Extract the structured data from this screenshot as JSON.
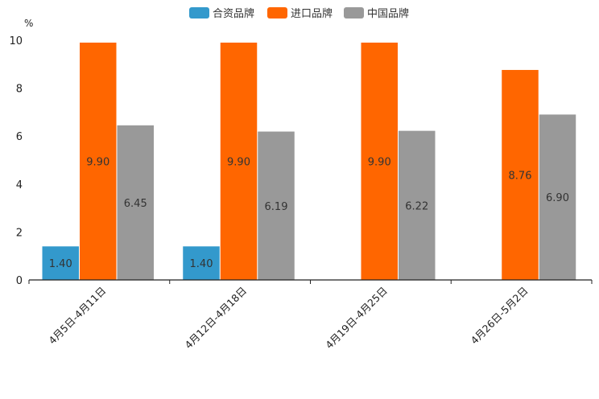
{
  "chart_data": {
    "type": "bar",
    "title": "",
    "xlabel": "",
    "ylabel": "%",
    "ylim": [
      0,
      10
    ],
    "yticks": [
      0,
      2,
      4,
      6,
      8,
      10
    ],
    "grid": false,
    "legend_position": "top-center",
    "categories": [
      "4月5日-4月11日",
      "4月12日-4月18日",
      "4月19日-4月25日",
      "4月26日-5月2日"
    ],
    "series": [
      {
        "name": "合资品牌",
        "color": "#3399cc",
        "values": [
          1.4,
          1.4,
          null,
          null
        ],
        "labels": [
          "1.40",
          "1.40",
          "",
          ""
        ]
      },
      {
        "name": "进口品牌",
        "color": "#ff6600",
        "values": [
          9.9,
          9.9,
          9.9,
          8.76
        ],
        "labels": [
          "9.90",
          "9.90",
          "9.90",
          "8.76"
        ]
      },
      {
        "name": "中国品牌",
        "color": "#999999",
        "values": [
          6.45,
          6.19,
          6.22,
          6.9
        ],
        "labels": [
          "6.45",
          "6.19",
          "6.22",
          "6.90"
        ]
      }
    ]
  }
}
